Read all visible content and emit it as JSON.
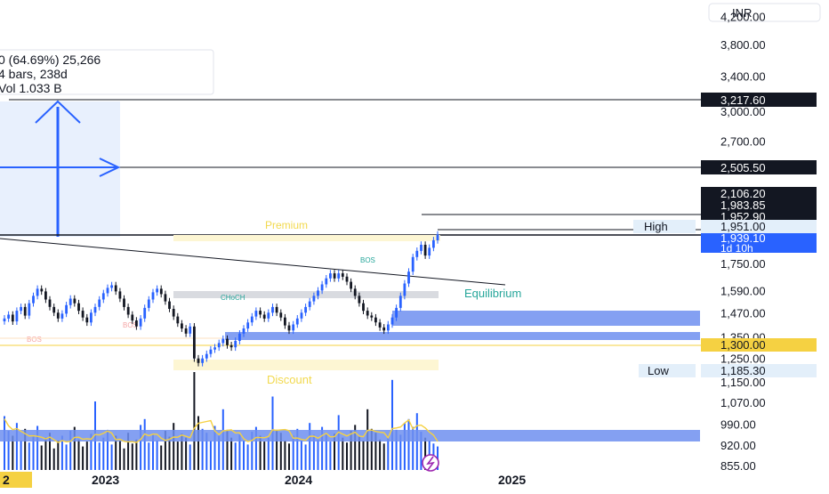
{
  "currency": "INR",
  "measure": {
    "line1": "0 (64.69%) 25,266",
    "line2": "4 bars, 238d",
    "line3": "Vol 1.033 B"
  },
  "zone_labels": {
    "premium": "Premium",
    "equilibrium": "Equilibrium",
    "discount": "Discount",
    "bos_top": "BOS",
    "choch": "CHoCH",
    "bos_left": "BOS",
    "bos_mid": "BOS"
  },
  "levels": {
    "high_label": "High",
    "high_value": "1,951.00",
    "low_label": "Low",
    "low_value": "1,185.30",
    "target1": "3,217.60",
    "target2": "2,505.50",
    "tag_a": "2,106.20",
    "tag_b": "1,983.85",
    "tag_c": "1,952.90",
    "last_price": "1,939.10",
    "countdown": "1d 10h",
    "support": "1,300.00"
  },
  "colors": {
    "up": "#2962ff",
    "down": "#131722",
    "demand_zone": "#6f8ff0",
    "premium_text": "#f2d94e",
    "equilibrium_text": "#26a69a",
    "discount_text": "#f2d94e",
    "volume_ma": "#f5d142",
    "price_tag": "#2962ff"
  },
  "chart_data": {
    "type": "candlestick",
    "scale": "log",
    "ylim": [
      830,
      4600
    ],
    "y_ticks": [
      "4,200.00",
      "3,800.00",
      "3,400.00",
      "3,000.00",
      "2,700.00",
      "1,750.00",
      "1,590.00",
      "1,470.00",
      "1,350.00",
      "1,250.00",
      "1,150.00",
      "1,070.00",
      "990.00",
      "920.00",
      "855.00"
    ],
    "x_ticks": [
      "2023",
      "2024",
      "2025"
    ],
    "x_tick_left_partial": "2",
    "candles_close": [
      1440,
      1460,
      1425,
      1480,
      1500,
      1455,
      1520,
      1560,
      1600,
      1585,
      1540,
      1500,
      1470,
      1440,
      1465,
      1510,
      1545,
      1520,
      1480,
      1445,
      1420,
      1470,
      1500,
      1540,
      1575,
      1605,
      1620,
      1585,
      1545,
      1500,
      1460,
      1430,
      1400,
      1440,
      1495,
      1540,
      1580,
      1600,
      1570,
      1530,
      1490,
      1450,
      1415,
      1390,
      1365,
      1400,
      1250,
      1230,
      1250,
      1270,
      1290,
      1300,
      1320,
      1340,
      1310,
      1300,
      1330,
      1365,
      1390,
      1420,
      1450,
      1480,
      1460,
      1440,
      1470,
      1500,
      1470,
      1445,
      1405,
      1380,
      1410,
      1440,
      1470,
      1500,
      1530,
      1560,
      1590,
      1625,
      1660,
      1690,
      1660,
      1690,
      1670,
      1640,
      1600,
      1560,
      1520,
      1480,
      1455,
      1445,
      1420,
      1395,
      1380,
      1410,
      1445,
      1495,
      1560,
      1630,
      1700,
      1790,
      1830,
      1870,
      1800,
      1850,
      1900,
      1939.1
    ],
    "volume": [
      0.55,
      0.4,
      0.35,
      0.48,
      0.3,
      0.42,
      0.28,
      0.36,
      0.45,
      0.25,
      0.33,
      0.38,
      0.22,
      0.3,
      0.35,
      0.26,
      0.4,
      0.44,
      0.31,
      0.24,
      0.29,
      0.37,
      0.7,
      0.28,
      0.33,
      0.41,
      0.26,
      0.35,
      0.3,
      0.22,
      0.38,
      0.27,
      0.31,
      0.46,
      0.52,
      0.28,
      0.36,
      0.3,
      0.25,
      0.4,
      0.34,
      0.48,
      0.29,
      0.37,
      0.33,
      0.26,
      1.0,
      0.55,
      0.42,
      0.38,
      0.3,
      0.45,
      0.35,
      0.62,
      0.41,
      0.33,
      0.28,
      0.36,
      0.3,
      0.26,
      0.39,
      0.44,
      0.35,
      0.29,
      0.33,
      0.75,
      0.41,
      0.38,
      0.3,
      0.27,
      0.35,
      0.42,
      0.3,
      0.26,
      0.48,
      0.36,
      0.31,
      0.44,
      0.38,
      0.29,
      0.37,
      0.56,
      0.33,
      0.28,
      0.4,
      0.46,
      0.35,
      0.3,
      0.62,
      0.42,
      0.38,
      0.31,
      0.27,
      0.35,
      0.92,
      0.41,
      0.36,
      0.48,
      0.52,
      0.44,
      0.58,
      0.39,
      0.33,
      0.3,
      0.27,
      0.24
    ]
  }
}
